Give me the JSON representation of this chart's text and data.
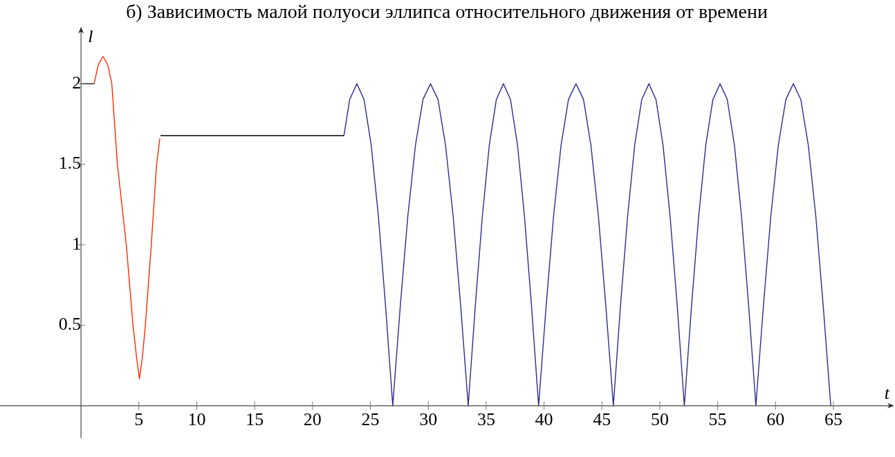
{
  "chart_data": {
    "type": "line",
    "title": "б) Зависимость малой полуоси эллипса относительного движения от времени",
    "xlabel": "t",
    "ylabel": "l",
    "xlim": [
      -7,
      70.2
    ],
    "ylim": [
      -0.2,
      2.35
    ],
    "xticks": [
      5,
      10,
      15,
      20,
      25,
      30,
      35,
      40,
      45,
      50,
      55,
      60,
      65
    ],
    "yticks": [
      0.5,
      1,
      1.5,
      2
    ],
    "grid": false,
    "legend": false,
    "marker": "none",
    "line_style": "solid",
    "series": [
      {
        "color": "#000000",
        "x": [
          0,
          1.13,
          1.14,
          6.86,
          22.71
        ],
        "values": [
          2,
          2,
          null,
          1.677,
          1.677
        ]
      },
      {
        "color": "#ff2a00",
        "x": [
          1.13,
          1.5,
          1.9,
          2.3,
          2.66,
          3.14,
          3.91,
          4.49,
          4.8,
          5.05,
          5.3,
          5.56,
          6.07,
          6.53,
          6.81
        ],
        "values": [
          2,
          2.12,
          2.169,
          2.12,
          2,
          1.5,
          1,
          0.5,
          0.3,
          0.167,
          0.3,
          0.5,
          1,
          1.5,
          1.66
        ]
      },
      {
        "color": "#2e2a8f",
        "x": [
          22.71,
          23.21,
          23.83,
          24.45,
          25.07,
          25.69,
          26.31,
          26.93,
          27.58,
          28.23,
          28.89,
          29.54,
          30.19,
          30.84,
          31.49,
          32.15,
          32.8,
          33.45,
          34.06,
          34.67,
          35.27,
          35.88,
          36.49,
          37.1,
          37.71,
          38.31,
          38.92,
          39.53,
          40.18,
          40.82,
          41.47,
          42.11,
          42.76,
          43.41,
          44.05,
          44.7,
          45.34,
          45.99,
          46.6,
          47.22,
          47.83,
          48.44,
          49.06,
          49.67,
          50.28,
          50.89,
          51.51,
          52.12,
          52.74,
          53.36,
          53.97,
          54.59,
          55.21,
          55.83,
          56.45,
          57.06,
          57.68,
          58.3,
          58.95,
          59.59,
          60.24,
          60.89,
          61.54,
          62.18,
          62.83,
          63.48,
          64.12,
          64.77
        ],
        "values": [
          1.677,
          1.902,
          2,
          1.902,
          1.618,
          1.176,
          0.618,
          0,
          0.618,
          1.176,
          1.618,
          1.902,
          2,
          1.902,
          1.618,
          1.176,
          0.618,
          0,
          0.618,
          1.176,
          1.618,
          1.902,
          2,
          1.902,
          1.618,
          1.176,
          0.618,
          0,
          0.618,
          1.176,
          1.618,
          1.902,
          2,
          1.902,
          1.618,
          1.176,
          0.618,
          0,
          0.618,
          1.176,
          1.618,
          1.902,
          2,
          1.902,
          1.618,
          1.176,
          0.618,
          0,
          0.618,
          1.176,
          1.618,
          1.902,
          2,
          1.902,
          1.618,
          1.176,
          0.618,
          0,
          0.618,
          1.176,
          1.618,
          1.902,
          2,
          1.902,
          1.618,
          1.176,
          0.618,
          0
        ]
      }
    ]
  }
}
